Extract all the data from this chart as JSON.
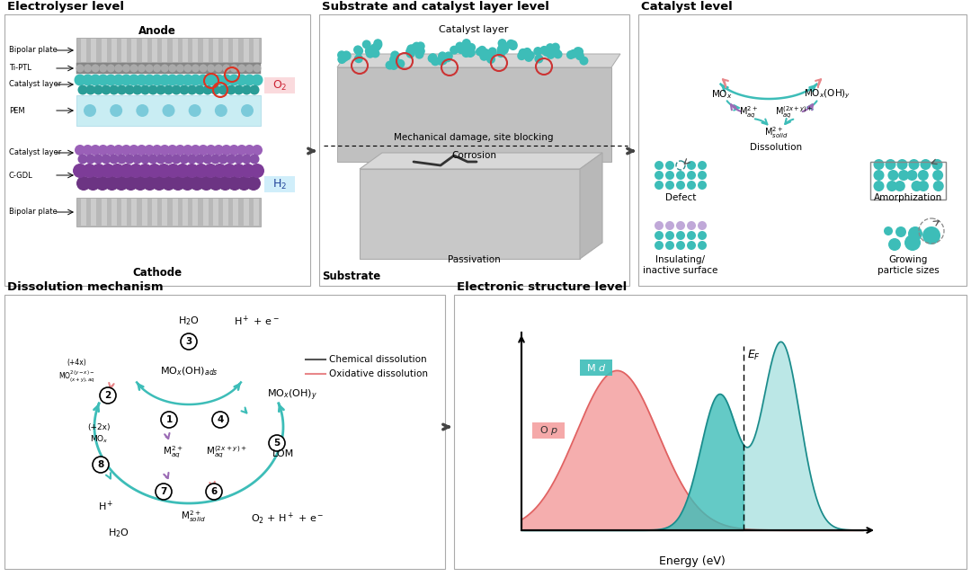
{
  "bg_color": "#ffffff",
  "teal": "#3dbdb8",
  "teal2": "#2a9d97",
  "purple": "#9b6bb5",
  "pink": "#e8878a",
  "gray_light": "#d0d0d0",
  "gray_mid": "#b0b0b0",
  "panel_border": "#999999",
  "panel_titles": [
    "Electrolyser level",
    "Substrate and catalyst layer level",
    "Catalyst level",
    "Dissolution mechanism",
    "Electronic structure level"
  ],
  "elec_labels": [
    "Bipolar plate",
    "Ti-PTL",
    "Catalyst layer",
    "PEM",
    "Catalyst layer",
    "C-GDL",
    "Bipolar plate"
  ],
  "legend_chem": "Chemical dissolution",
  "legend_oxid": "Oxidative dissolution"
}
